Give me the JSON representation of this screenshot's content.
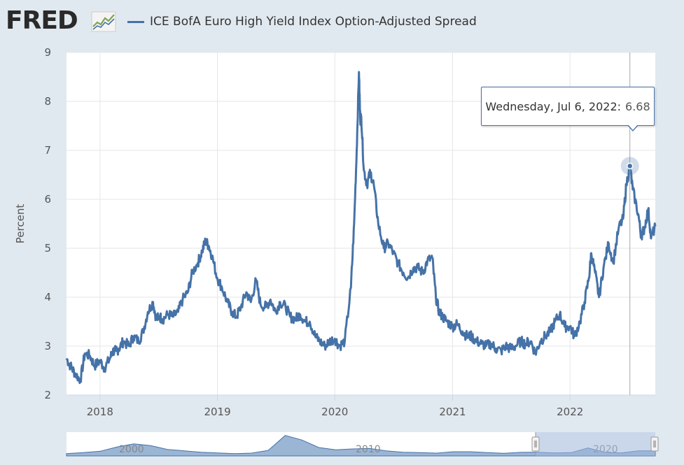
{
  "header": {
    "logo": "FRED",
    "logo_icon": "chart-trend-icon",
    "series_legend": "ICE BofA Euro High Yield Index Option-Adjusted Spread"
  },
  "tooltip": {
    "date": "Wednesday, Jul 6, 2022:",
    "value": "6.68"
  },
  "navigator": {
    "labels": [
      "2000",
      "2010",
      "2020"
    ],
    "handle_icon": "drag-handle-icon"
  },
  "colors": {
    "series": "#4572a7",
    "background": "#e1e9f0",
    "plot": "#ffffff",
    "navigator_fill": "#7a9cc6",
    "navigator_mask": "#b8c9e3"
  },
  "chart_data": {
    "type": "line",
    "ylabel": "Percent",
    "ylim": [
      2,
      9
    ],
    "xlim": [
      "2017-09-19",
      "2022-09-23"
    ],
    "y_ticks": [
      "2",
      "3",
      "4",
      "5",
      "6",
      "7",
      "8",
      "9"
    ],
    "x_ticks": [
      "2018",
      "2019",
      "2020",
      "2021",
      "2022"
    ],
    "grid": true,
    "highlight": {
      "date": "2022-07-06",
      "value": 6.68
    },
    "series": [
      {
        "name": "ICE BofA Euro High Yield Index Option-Adjusted Spread",
        "x": [
          "2017-09-19",
          "2017-10-01",
          "2017-10-15",
          "2017-11-01",
          "2017-11-15",
          "2017-12-01",
          "2017-12-15",
          "2018-01-01",
          "2018-01-15",
          "2018-02-01",
          "2018-02-10",
          "2018-02-20",
          "2018-03-01",
          "2018-03-15",
          "2018-04-01",
          "2018-04-15",
          "2018-05-01",
          "2018-05-15",
          "2018-05-30",
          "2018-06-15",
          "2018-06-25",
          "2018-07-05",
          "2018-07-15",
          "2018-08-01",
          "2018-08-15",
          "2018-09-01",
          "2018-09-15",
          "2018-10-01",
          "2018-10-15",
          "2018-11-01",
          "2018-11-15",
          "2018-11-25",
          "2018-12-05",
          "2018-12-15",
          "2018-12-31",
          "2019-01-15",
          "2019-02-01",
          "2019-02-15",
          "2019-03-01",
          "2019-03-15",
          "2019-04-01",
          "2019-04-15",
          "2019-05-01",
          "2019-05-15",
          "2019-06-01",
          "2019-06-15",
          "2019-07-01",
          "2019-07-15",
          "2019-08-01",
          "2019-08-15",
          "2019-09-01",
          "2019-09-15",
          "2019-10-01",
          "2019-10-15",
          "2019-11-01",
          "2019-11-15",
          "2019-12-01",
          "2019-12-15",
          "2020-01-01",
          "2020-01-15",
          "2020-02-01",
          "2020-02-20",
          "2020-03-01",
          "2020-03-09",
          "2020-03-16",
          "2020-03-20",
          "2020-03-23",
          "2020-03-31",
          "2020-04-10",
          "2020-04-20",
          "2020-05-01",
          "2020-05-15",
          "2020-06-01",
          "2020-06-15",
          "2020-07-01",
          "2020-07-15",
          "2020-08-01",
          "2020-08-15",
          "2020-09-01",
          "2020-09-15",
          "2020-10-01",
          "2020-10-15",
          "2020-10-30",
          "2020-11-10",
          "2020-11-20",
          "2020-12-01",
          "2020-12-15",
          "2021-01-01",
          "2021-01-15",
          "2021-02-01",
          "2021-02-15",
          "2021-03-01",
          "2021-03-15",
          "2021-04-01",
          "2021-04-15",
          "2021-05-01",
          "2021-05-15",
          "2021-06-01",
          "2021-06-15",
          "2021-07-01",
          "2021-07-15",
          "2021-08-01",
          "2021-08-15",
          "2021-09-01",
          "2021-09-15",
          "2021-10-01",
          "2021-10-15",
          "2021-11-01",
          "2021-11-15",
          "2021-11-30",
          "2021-12-15",
          "2022-01-01",
          "2022-01-15",
          "2022-02-01",
          "2022-02-15",
          "2022-03-01",
          "2022-03-08",
          "2022-03-20",
          "2022-04-01",
          "2022-04-15",
          "2022-05-01",
          "2022-05-15",
          "2022-06-01",
          "2022-06-15",
          "2022-06-25",
          "2022-07-06",
          "2022-07-15",
          "2022-08-01",
          "2022-08-10",
          "2022-08-20",
          "2022-09-01",
          "2022-09-10",
          "2022-09-23"
        ],
        "values": [
          2.75,
          2.6,
          2.45,
          2.3,
          2.85,
          2.8,
          2.6,
          2.7,
          2.55,
          2.75,
          2.9,
          2.9,
          2.95,
          3.1,
          3.0,
          3.2,
          3.1,
          3.3,
          3.7,
          3.9,
          3.55,
          3.6,
          3.55,
          3.65,
          3.6,
          3.7,
          3.95,
          4.1,
          4.5,
          4.7,
          4.95,
          5.15,
          5.05,
          4.85,
          4.4,
          4.2,
          3.9,
          3.7,
          3.6,
          3.8,
          4.1,
          3.9,
          4.35,
          3.85,
          3.8,
          3.95,
          3.7,
          3.9,
          3.8,
          3.6,
          3.55,
          3.65,
          3.5,
          3.5,
          3.2,
          3.1,
          3.0,
          3.1,
          3.15,
          3.0,
          3.1,
          4.2,
          5.5,
          7.0,
          8.6,
          7.6,
          7.7,
          6.6,
          6.3,
          6.55,
          6.3,
          5.5,
          5.0,
          5.1,
          4.9,
          4.7,
          4.5,
          4.4,
          4.6,
          4.6,
          4.5,
          4.75,
          4.8,
          4.0,
          3.7,
          3.6,
          3.5,
          3.4,
          3.45,
          3.3,
          3.2,
          3.2,
          3.1,
          3.05,
          3.0,
          3.05,
          2.95,
          2.9,
          3.0,
          2.95,
          3.0,
          3.1,
          3.05,
          3.1,
          2.85,
          3.1,
          3.2,
          3.3,
          3.5,
          3.65,
          3.4,
          3.4,
          3.2,
          3.5,
          3.9,
          4.4,
          4.9,
          4.5,
          4.0,
          4.6,
          5.1,
          4.7,
          5.4,
          5.6,
          6.3,
          6.68,
          6.2,
          5.7,
          5.25,
          5.4,
          5.8,
          5.2,
          5.45
        ]
      }
    ]
  }
}
